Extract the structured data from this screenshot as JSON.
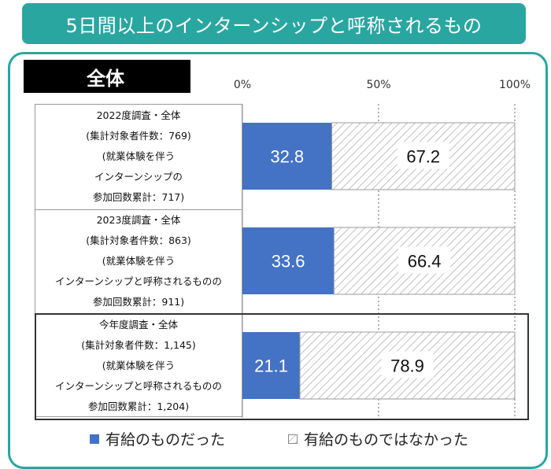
{
  "title": "5日間以上のインターンシップと呼称されるもの",
  "section_label": "全体",
  "colors": {
    "paid": "#4472c4",
    "unpaid_hatch": "#bdbdbd",
    "teal": "#2aa6a0"
  },
  "legend": {
    "paid": "有給のものだった",
    "unpaid": "有給のものではなかった"
  },
  "row_labels": [
    [
      "2022度調査・全体",
      "(集計対象者件数：769)",
      "(就業体験を伴う",
      "インターンシップの",
      "参加回数累計：717)"
    ],
    [
      "2023度調査・全体",
      "(集計対象者件数：863)",
      "(就業体験を伴う",
      "インターンシップと呼称されるものの",
      "参加回数累計：911)"
    ],
    [
      "今年度調査・全体",
      "(集計対象者件数：1,145)",
      "(就業体験を伴う",
      "インターンシップと呼称されるものの",
      "参加回数累計：1,204)"
    ]
  ],
  "chart_data": {
    "type": "bar",
    "orientation": "horizontal",
    "stacked": true,
    "categories": [
      "2022度調査・全体",
      "2023度調査・全体",
      "今年度調査・全体"
    ],
    "series": [
      {
        "name": "有給のものだった",
        "values": [
          32.8,
          33.6,
          21.1
        ]
      },
      {
        "name": "有給のものではなかった",
        "values": [
          67.2,
          66.4,
          78.9
        ]
      }
    ],
    "xlim": [
      0,
      100
    ],
    "xticks": [
      "0%",
      "50%",
      "100%"
    ],
    "grid": "dashed vertical at 50% and 100%",
    "legend_position": "bottom"
  }
}
